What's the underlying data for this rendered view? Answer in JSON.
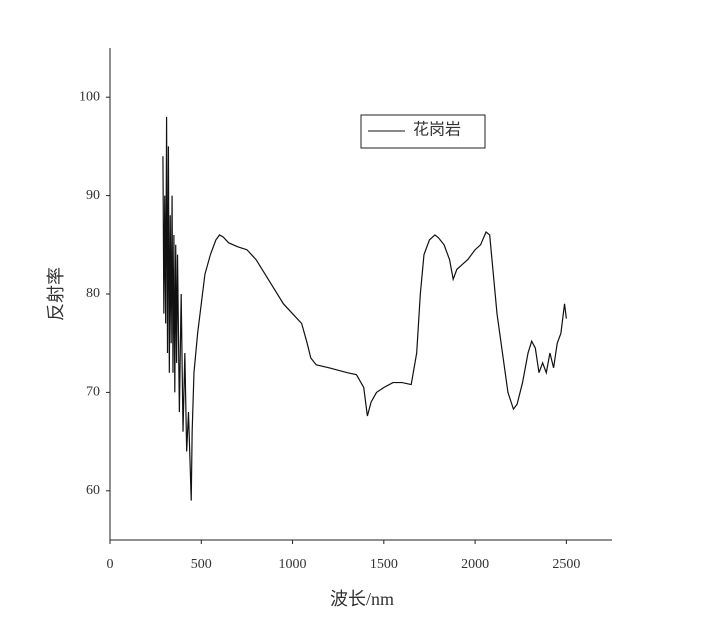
{
  "chart_data": {
    "type": "line",
    "xlabel": "波长/nm",
    "ylabel": "反射率",
    "xlim": [
      0,
      2750
    ],
    "xticks": [
      0,
      500,
      1000,
      1500,
      2000,
      2500
    ],
    "ylim": [
      55,
      105
    ],
    "yticks": [
      60,
      70,
      80,
      90,
      100
    ],
    "x": [
      290,
      295,
      300,
      305,
      310,
      315,
      320,
      325,
      330,
      335,
      340,
      345,
      350,
      355,
      360,
      365,
      370,
      380,
      390,
      400,
      410,
      420,
      430,
      440,
      445,
      450,
      460,
      480,
      500,
      520,
      550,
      580,
      600,
      620,
      650,
      700,
      750,
      800,
      850,
      900,
      950,
      1000,
      1050,
      1080,
      1100,
      1130,
      1200,
      1300,
      1350,
      1390,
      1410,
      1430,
      1460,
      1500,
      1550,
      1600,
      1650,
      1680,
      1700,
      1720,
      1750,
      1780,
      1800,
      1830,
      1860,
      1880,
      1900,
      1930,
      1960,
      2000,
      2030,
      2060,
      2080,
      2100,
      2120,
      2150,
      2180,
      2210,
      2230,
      2260,
      2290,
      2310,
      2330,
      2350,
      2370,
      2390,
      2410,
      2430,
      2450,
      2470,
      2490,
      2500
    ],
    "series": [
      {
        "name": "花岗岩",
        "color": "#111111",
        "values": [
          94,
          78,
          90,
          77,
          98,
          74,
          95,
          72,
          88,
          75,
          90,
          72,
          86,
          70,
          85,
          73,
          84,
          68,
          80,
          66,
          74,
          64,
          68,
          62,
          59,
          66,
          72,
          76,
          79,
          82,
          84,
          85.5,
          86,
          85.8,
          85.2,
          84.8,
          84.5,
          83.5,
          82,
          80.5,
          79,
          78,
          77,
          75,
          73.5,
          72.8,
          72.5,
          72,
          71.8,
          70.5,
          67.6,
          69,
          70,
          70.5,
          71,
          71,
          70.8,
          74,
          80,
          84,
          85.5,
          86,
          85.7,
          85,
          83.5,
          81.5,
          82.5,
          83,
          83.5,
          84.5,
          85,
          86.3,
          86,
          82,
          78,
          74,
          70,
          68.3,
          68.8,
          71,
          74,
          75.2,
          74.5,
          72,
          73,
          72,
          74,
          72.5,
          75,
          76,
          79,
          77.5
        ]
      }
    ]
  }
}
